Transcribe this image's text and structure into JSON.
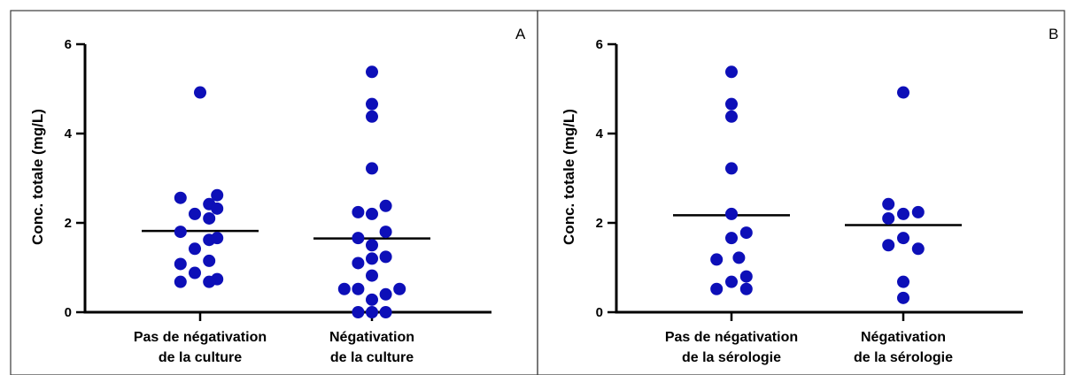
{
  "colors": {
    "point": "#0d0fb8",
    "axis": "#000000",
    "border": "#3a3a3a",
    "median": "#000000"
  },
  "chart_data": [
    {
      "type": "scatter",
      "panel_label": "A",
      "ylabel": "Conc. totale (mg/L)",
      "ylim": [
        0,
        6
      ],
      "yticks": [
        0,
        2,
        4,
        6
      ],
      "grid": false,
      "categories": [
        {
          "line1": "Pas de négativation",
          "line2": "de la culture"
        },
        {
          "line1": "Négativation",
          "line2": "de la culture"
        }
      ],
      "series": [
        {
          "median": 1.82,
          "points": [
            {
              "x": 0,
              "y": 4.92
            },
            {
              "x": -0.37,
              "y": 2.56
            },
            {
              "x": 0.32,
              "y": 2.62
            },
            {
              "x": 0.17,
              "y": 2.42
            },
            {
              "x": 0.32,
              "y": 2.32
            },
            {
              "x": -0.1,
              "y": 2.2
            },
            {
              "x": 0.17,
              "y": 2.1
            },
            {
              "x": -0.37,
              "y": 1.8
            },
            {
              "x": 0.17,
              "y": 1.62
            },
            {
              "x": 0.32,
              "y": 1.66
            },
            {
              "x": -0.1,
              "y": 1.42
            },
            {
              "x": 0.17,
              "y": 1.15
            },
            {
              "x": -0.37,
              "y": 1.08
            },
            {
              "x": -0.1,
              "y": 0.88
            },
            {
              "x": 0.32,
              "y": 0.74
            },
            {
              "x": -0.37,
              "y": 0.68
            },
            {
              "x": 0.17,
              "y": 0.68
            }
          ]
        },
        {
          "median": 1.65,
          "points": [
            {
              "x": 0,
              "y": 5.38
            },
            {
              "x": 0,
              "y": 4.66
            },
            {
              "x": 0,
              "y": 4.38
            },
            {
              "x": 0,
              "y": 3.22
            },
            {
              "x": 0.26,
              "y": 2.38
            },
            {
              "x": -0.26,
              "y": 2.24
            },
            {
              "x": 0,
              "y": 2.2
            },
            {
              "x": 0.26,
              "y": 1.8
            },
            {
              "x": -0.26,
              "y": 1.66
            },
            {
              "x": 0,
              "y": 1.5
            },
            {
              "x": 0.26,
              "y": 1.24
            },
            {
              "x": 0,
              "y": 1.2
            },
            {
              "x": -0.26,
              "y": 1.1
            },
            {
              "x": 0,
              "y": 0.82
            },
            {
              "x": -0.52,
              "y": 0.52
            },
            {
              "x": -0.26,
              "y": 0.52
            },
            {
              "x": 0.52,
              "y": 0.52
            },
            {
              "x": 0.26,
              "y": 0.4
            },
            {
              "x": 0,
              "y": 0.28
            },
            {
              "x": -0.26,
              "y": 0
            },
            {
              "x": 0,
              "y": 0
            },
            {
              "x": 0.26,
              "y": 0
            }
          ]
        }
      ]
    },
    {
      "type": "scatter",
      "panel_label": "B",
      "ylabel": "Conc. totale (mg/L)",
      "ylim": [
        0,
        6
      ],
      "yticks": [
        0,
        2,
        4,
        6
      ],
      "grid": false,
      "categories": [
        {
          "line1": "Pas de négativation",
          "line2": "de la sérologie"
        },
        {
          "line1": "Négativation",
          "line2": "de la sérologie"
        }
      ],
      "series": [
        {
          "median": 2.17,
          "points": [
            {
              "x": 0,
              "y": 5.38
            },
            {
              "x": 0,
              "y": 4.66
            },
            {
              "x": 0,
              "y": 4.38
            },
            {
              "x": 0,
              "y": 3.22
            },
            {
              "x": 0,
              "y": 2.2
            },
            {
              "x": 0.28,
              "y": 1.78
            },
            {
              "x": 0,
              "y": 1.66
            },
            {
              "x": -0.28,
              "y": 1.18
            },
            {
              "x": 0.14,
              "y": 1.22
            },
            {
              "x": 0.28,
              "y": 0.8
            },
            {
              "x": 0,
              "y": 0.68
            },
            {
              "x": -0.28,
              "y": 0.52
            },
            {
              "x": 0.28,
              "y": 0.52
            }
          ]
        },
        {
          "median": 1.95,
          "points": [
            {
              "x": 0,
              "y": 4.92
            },
            {
              "x": -0.28,
              "y": 2.42
            },
            {
              "x": 0.28,
              "y": 2.24
            },
            {
              "x": -0.28,
              "y": 2.1
            },
            {
              "x": 0,
              "y": 2.2
            },
            {
              "x": 0,
              "y": 1.66
            },
            {
              "x": -0.28,
              "y": 1.5
            },
            {
              "x": 0.28,
              "y": 1.42
            },
            {
              "x": 0,
              "y": 0.68
            },
            {
              "x": 0,
              "y": 0.32
            }
          ]
        }
      ]
    }
  ]
}
